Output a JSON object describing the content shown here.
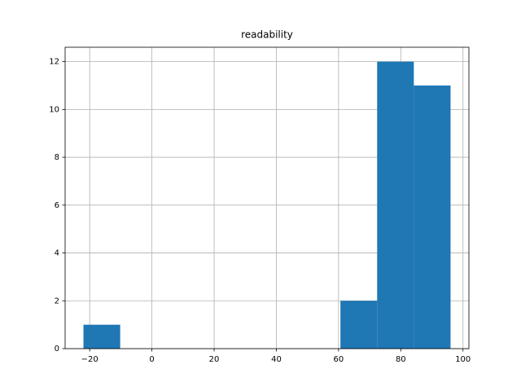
{
  "chart_data": {
    "type": "histogram",
    "title": "readability",
    "bins": [
      -22,
      -10.2,
      1.6,
      13.4,
      25.2,
      37,
      48.8,
      60.6,
      72.4,
      84.2,
      96
    ],
    "counts": [
      1,
      0,
      0,
      0,
      0,
      0,
      0,
      2,
      12,
      11
    ],
    "color": "#1f77b4",
    "xlim": [
      -27.9,
      101.9
    ],
    "xticks": [
      {
        "value": -20,
        "label": "−20"
      },
      0,
      20,
      40,
      60,
      80,
      100
    ],
    "ylim": [
      0,
      12.6
    ],
    "yticks": [
      0,
      2,
      4,
      6,
      8,
      10,
      12
    ],
    "grid": true
  }
}
